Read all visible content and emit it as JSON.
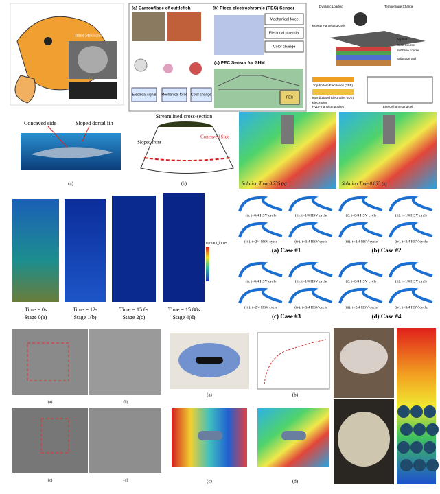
{
  "fish": {
    "caption": "Blind Mexican Cave Fish"
  },
  "pec": {
    "panel_a": "(a) Camouflage of cuttlefish",
    "panel_b": "(b) Piezo-electrochromic (PEC) Sensor",
    "outputs": [
      "Mechanical force",
      "Electrical potential",
      "Color change"
    ],
    "flow": [
      "Electrical signal",
      "Mechanical force",
      "Color change"
    ],
    "panel_c": "(c) PEC Sensor for SHM",
    "tag": "PEC"
  },
  "harvest": {
    "top": [
      "Dynamic Loading",
      "Temperature Change"
    ],
    "cells": "Energy Harvesting Cells",
    "layers": [
      "Asphalt",
      "Base Course",
      "Subbase course",
      "Subgrade Soil"
    ],
    "electrodes": [
      "Top-bottom Electrodes (TBE)",
      "Interdigitated Electrodes (IDE)"
    ],
    "legend": [
      "Electrodes",
      "PVDF nanocomposites"
    ],
    "caption": "Energy harvesting cell"
  },
  "shark": {
    "labels": [
      "Concaved side",
      "Sloped dorsal fin"
    ],
    "caption": "(a)"
  },
  "section": {
    "title": "Streamlined cross-section",
    "labels": [
      "Sloped front",
      "Concaved Side"
    ],
    "caption": "(b)"
  },
  "pressure": {
    "times": [
      "Solution Time 0.735 (s)",
      "Solution Time 0.835 (s)"
    ]
  },
  "sim": {
    "legend": "contact_force",
    "stages": [
      {
        "time": "Time = 0s",
        "stage": "Stage 0(a)"
      },
      {
        "time": "Time = 12s",
        "stage": "Stage 1(b)"
      },
      {
        "time": "Time = 15.6s",
        "stage": "Stage 2(c)"
      },
      {
        "time": "Time = 15.88s",
        "stage": "Stage 4(d)"
      }
    ]
  },
  "cases": [
    {
      "title": "(a) Case #1",
      "labels": [
        "(i). t=0/4 HSV cycle",
        "(ii). t=1/4 HSV cycle",
        "(iii). t=2/4 HSV cycle",
        "(iv). t=3/4 HSV cycle"
      ]
    },
    {
      "title": "(b) Case #2",
      "labels": [
        "(i). t=0/4 HSV cycle",
        "(ii). t=1/4 HSV cycle",
        "(iii). t=2/4 HSV cycle",
        "(iv). t=3/4 HSV cycle"
      ]
    },
    {
      "title": "(c) Case #3",
      "labels": [
        "(i). t=0/4 HSV cycle",
        "(ii). t=1/4 HSV cycle",
        "(iii). t=2/4 HSV cycle",
        "(iv). t=3/4 HSV cycle"
      ]
    },
    {
      "title": "(d) Case #4",
      "labels": [
        "(i). t=0/4 HSV cycle",
        "(ii). t=1/4 HSV cycle",
        "(iii). t=2/4 HSV cycle",
        "(iv). t=3/4 HSV cycle"
      ]
    }
  ],
  "sem": {
    "labels": [
      "(a)",
      "(b)",
      "(c)",
      "(d)"
    ]
  },
  "scour": {
    "labels": [
      "(a)",
      "(b)",
      "(c)",
      "(d)"
    ]
  }
}
